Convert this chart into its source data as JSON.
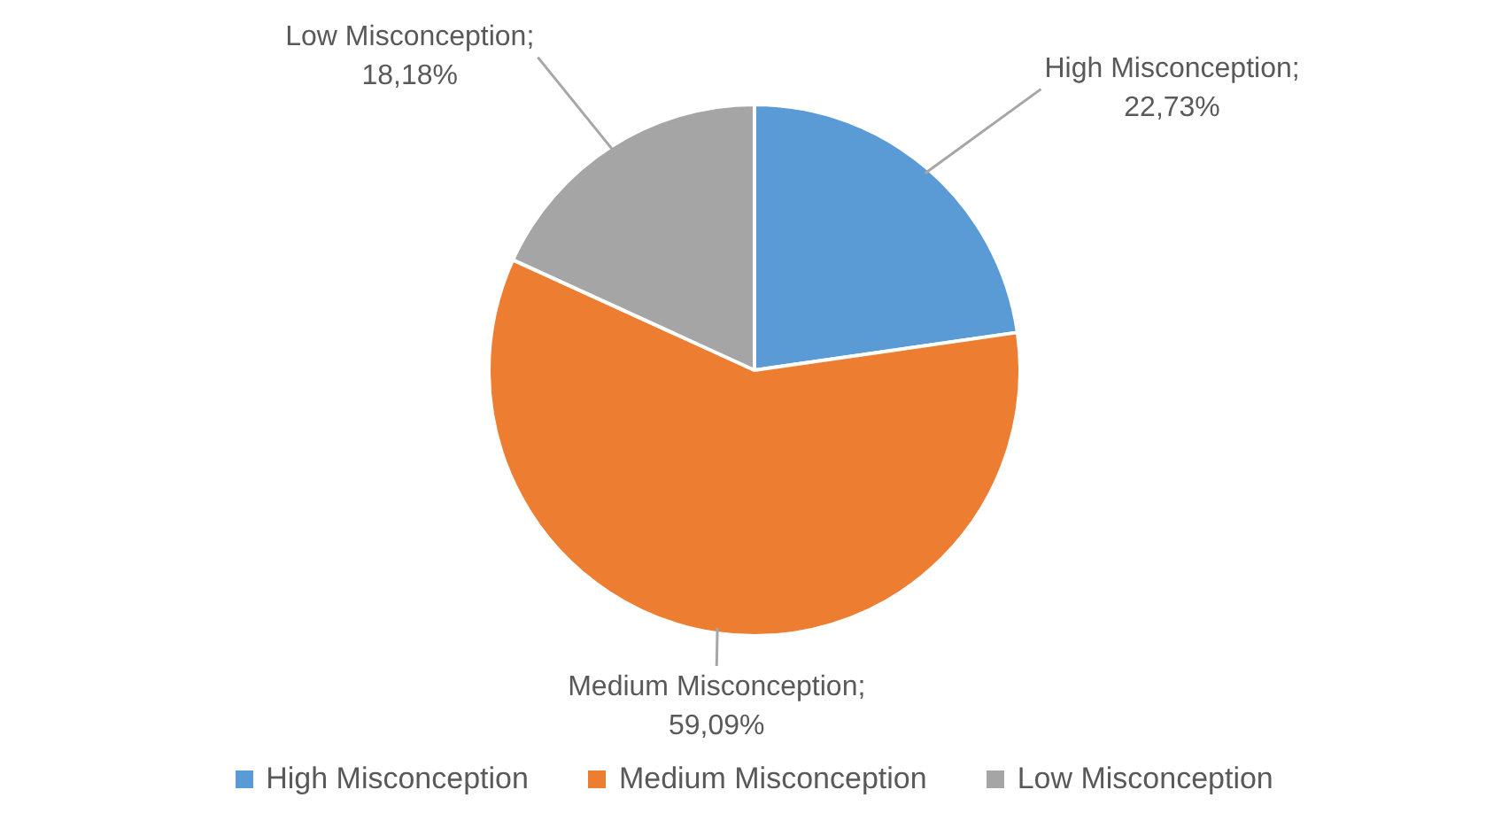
{
  "chart_data": {
    "type": "pie",
    "categories": [
      "High Misconception",
      "Medium Misconception",
      "Low Misconception"
    ],
    "values": [
      22.73,
      59.09,
      18.18
    ],
    "colors": [
      "#5b9bd5",
      "#ed7d31",
      "#a5a5a5"
    ],
    "value_labels": [
      "High Misconception; 22,73%",
      "Medium Misconception; 59,09%",
      "Low Misconception; 18,18%"
    ],
    "legend": "bottom"
  }
}
